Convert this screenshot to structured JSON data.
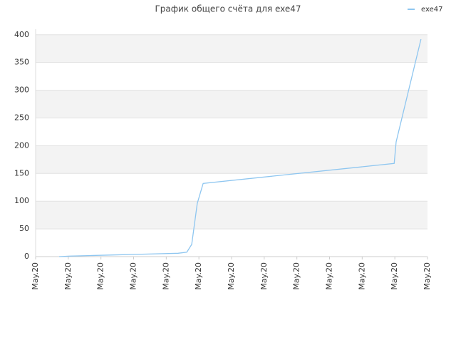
{
  "chart_data": {
    "type": "line",
    "title": "График общего счёта для exe47",
    "x": [
      0.72,
      1.05,
      1.75,
      2.36,
      3.05,
      3.67,
      4.36,
      4.63,
      4.78,
      4.95,
      5.13,
      10.98,
      11.04,
      11.8
    ],
    "series": [
      {
        "name": "exe47",
        "color": "#8ec6f0",
        "values": [
          0,
          1,
          2,
          3,
          4,
          5,
          6,
          8,
          22,
          96,
          132,
          168,
          207,
          392
        ]
      }
    ],
    "xlim": [
      0,
      12
    ],
    "xticks": [
      {
        "value": 0,
        "label": "May.20"
      },
      {
        "value": 1,
        "label": "May.20"
      },
      {
        "value": 2,
        "label": "May.20"
      },
      {
        "value": 3,
        "label": "May.20"
      },
      {
        "value": 4,
        "label": "May.20"
      },
      {
        "value": 5,
        "label": "May.20"
      },
      {
        "value": 6,
        "label": "May.20"
      },
      {
        "value": 7,
        "label": "May.20"
      },
      {
        "value": 8,
        "label": "May.20"
      },
      {
        "value": 9,
        "label": "May.20"
      },
      {
        "value": 10,
        "label": "May.20"
      },
      {
        "value": 11,
        "label": "May.20"
      },
      {
        "value": 12,
        "label": "May.20"
      }
    ],
    "ylim": [
      0,
      410
    ],
    "yticks": [
      0,
      50,
      100,
      150,
      200,
      250,
      300,
      350,
      400
    ],
    "grid": true,
    "legend": "top-right"
  }
}
